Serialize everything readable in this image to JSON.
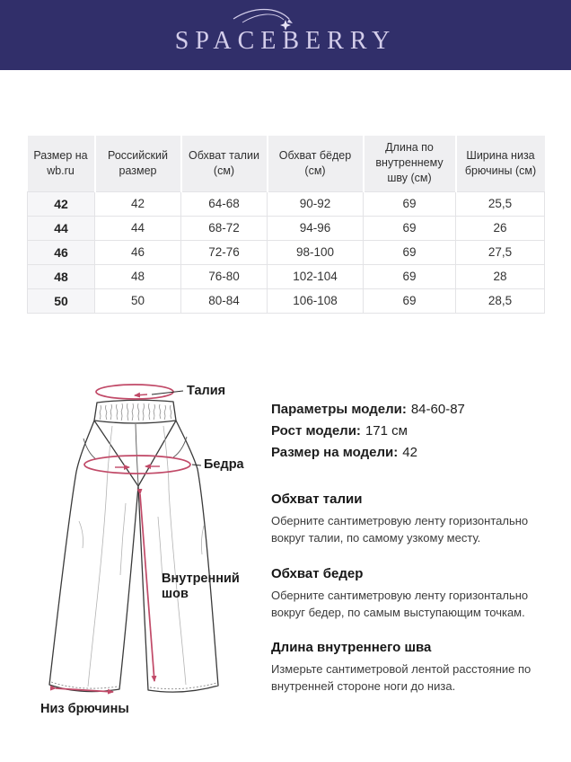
{
  "colors": {
    "header_bg": "#312f6a",
    "logo_text": "#d3cdea",
    "accent_pink": "#c14a68",
    "table_header_bg": "#efeff1",
    "table_first_col_bg": "#f6f6f8"
  },
  "brand": {
    "logo_text": "SPACEBERRY"
  },
  "size_table": {
    "columns": [
      "Размер на wb.ru",
      "Российский размер",
      "Обхват талии (см)",
      "Обхват бёдер (см)",
      "Длина по внутреннему шву (см)",
      "Ширина низа брючины (см)"
    ],
    "rows": [
      [
        "42",
        "42",
        "64-68",
        "90-92",
        "69",
        "25,5"
      ],
      [
        "44",
        "44",
        "68-72",
        "94-96",
        "69",
        "26"
      ],
      [
        "46",
        "46",
        "72-76",
        "98-100",
        "69",
        "27,5"
      ],
      [
        "48",
        "48",
        "76-80",
        "102-104",
        "69",
        "28"
      ],
      [
        "50",
        "50",
        "80-84",
        "106-108",
        "69",
        "28,5"
      ]
    ]
  },
  "diagram": {
    "labels": {
      "waist": "Талия",
      "hips": "Бедра",
      "inseam": "Внутренний шов",
      "hem": "Низ брючины"
    }
  },
  "model_info": {
    "lines": [
      {
        "label": "Параметры модели:",
        "value": "84-60-87"
      },
      {
        "label": "Рост модели:",
        "value": "171 см"
      },
      {
        "label": "Размер на модели:",
        "value": "42"
      }
    ]
  },
  "measure_guides": [
    {
      "title": "Обхват талии",
      "text": "Оберните сантиметровую ленту горизонтально вокруг талии, по самому узкому месту."
    },
    {
      "title": "Обхват бедер",
      "text": "Оберните сантиметровую ленту горизонтально вокруг бедер, по самым выступающим точкам."
    },
    {
      "title": "Длина внутреннего шва",
      "text": "Измерьте сантиметровой лентой расстояние по внутренней стороне ноги до низа."
    }
  ]
}
